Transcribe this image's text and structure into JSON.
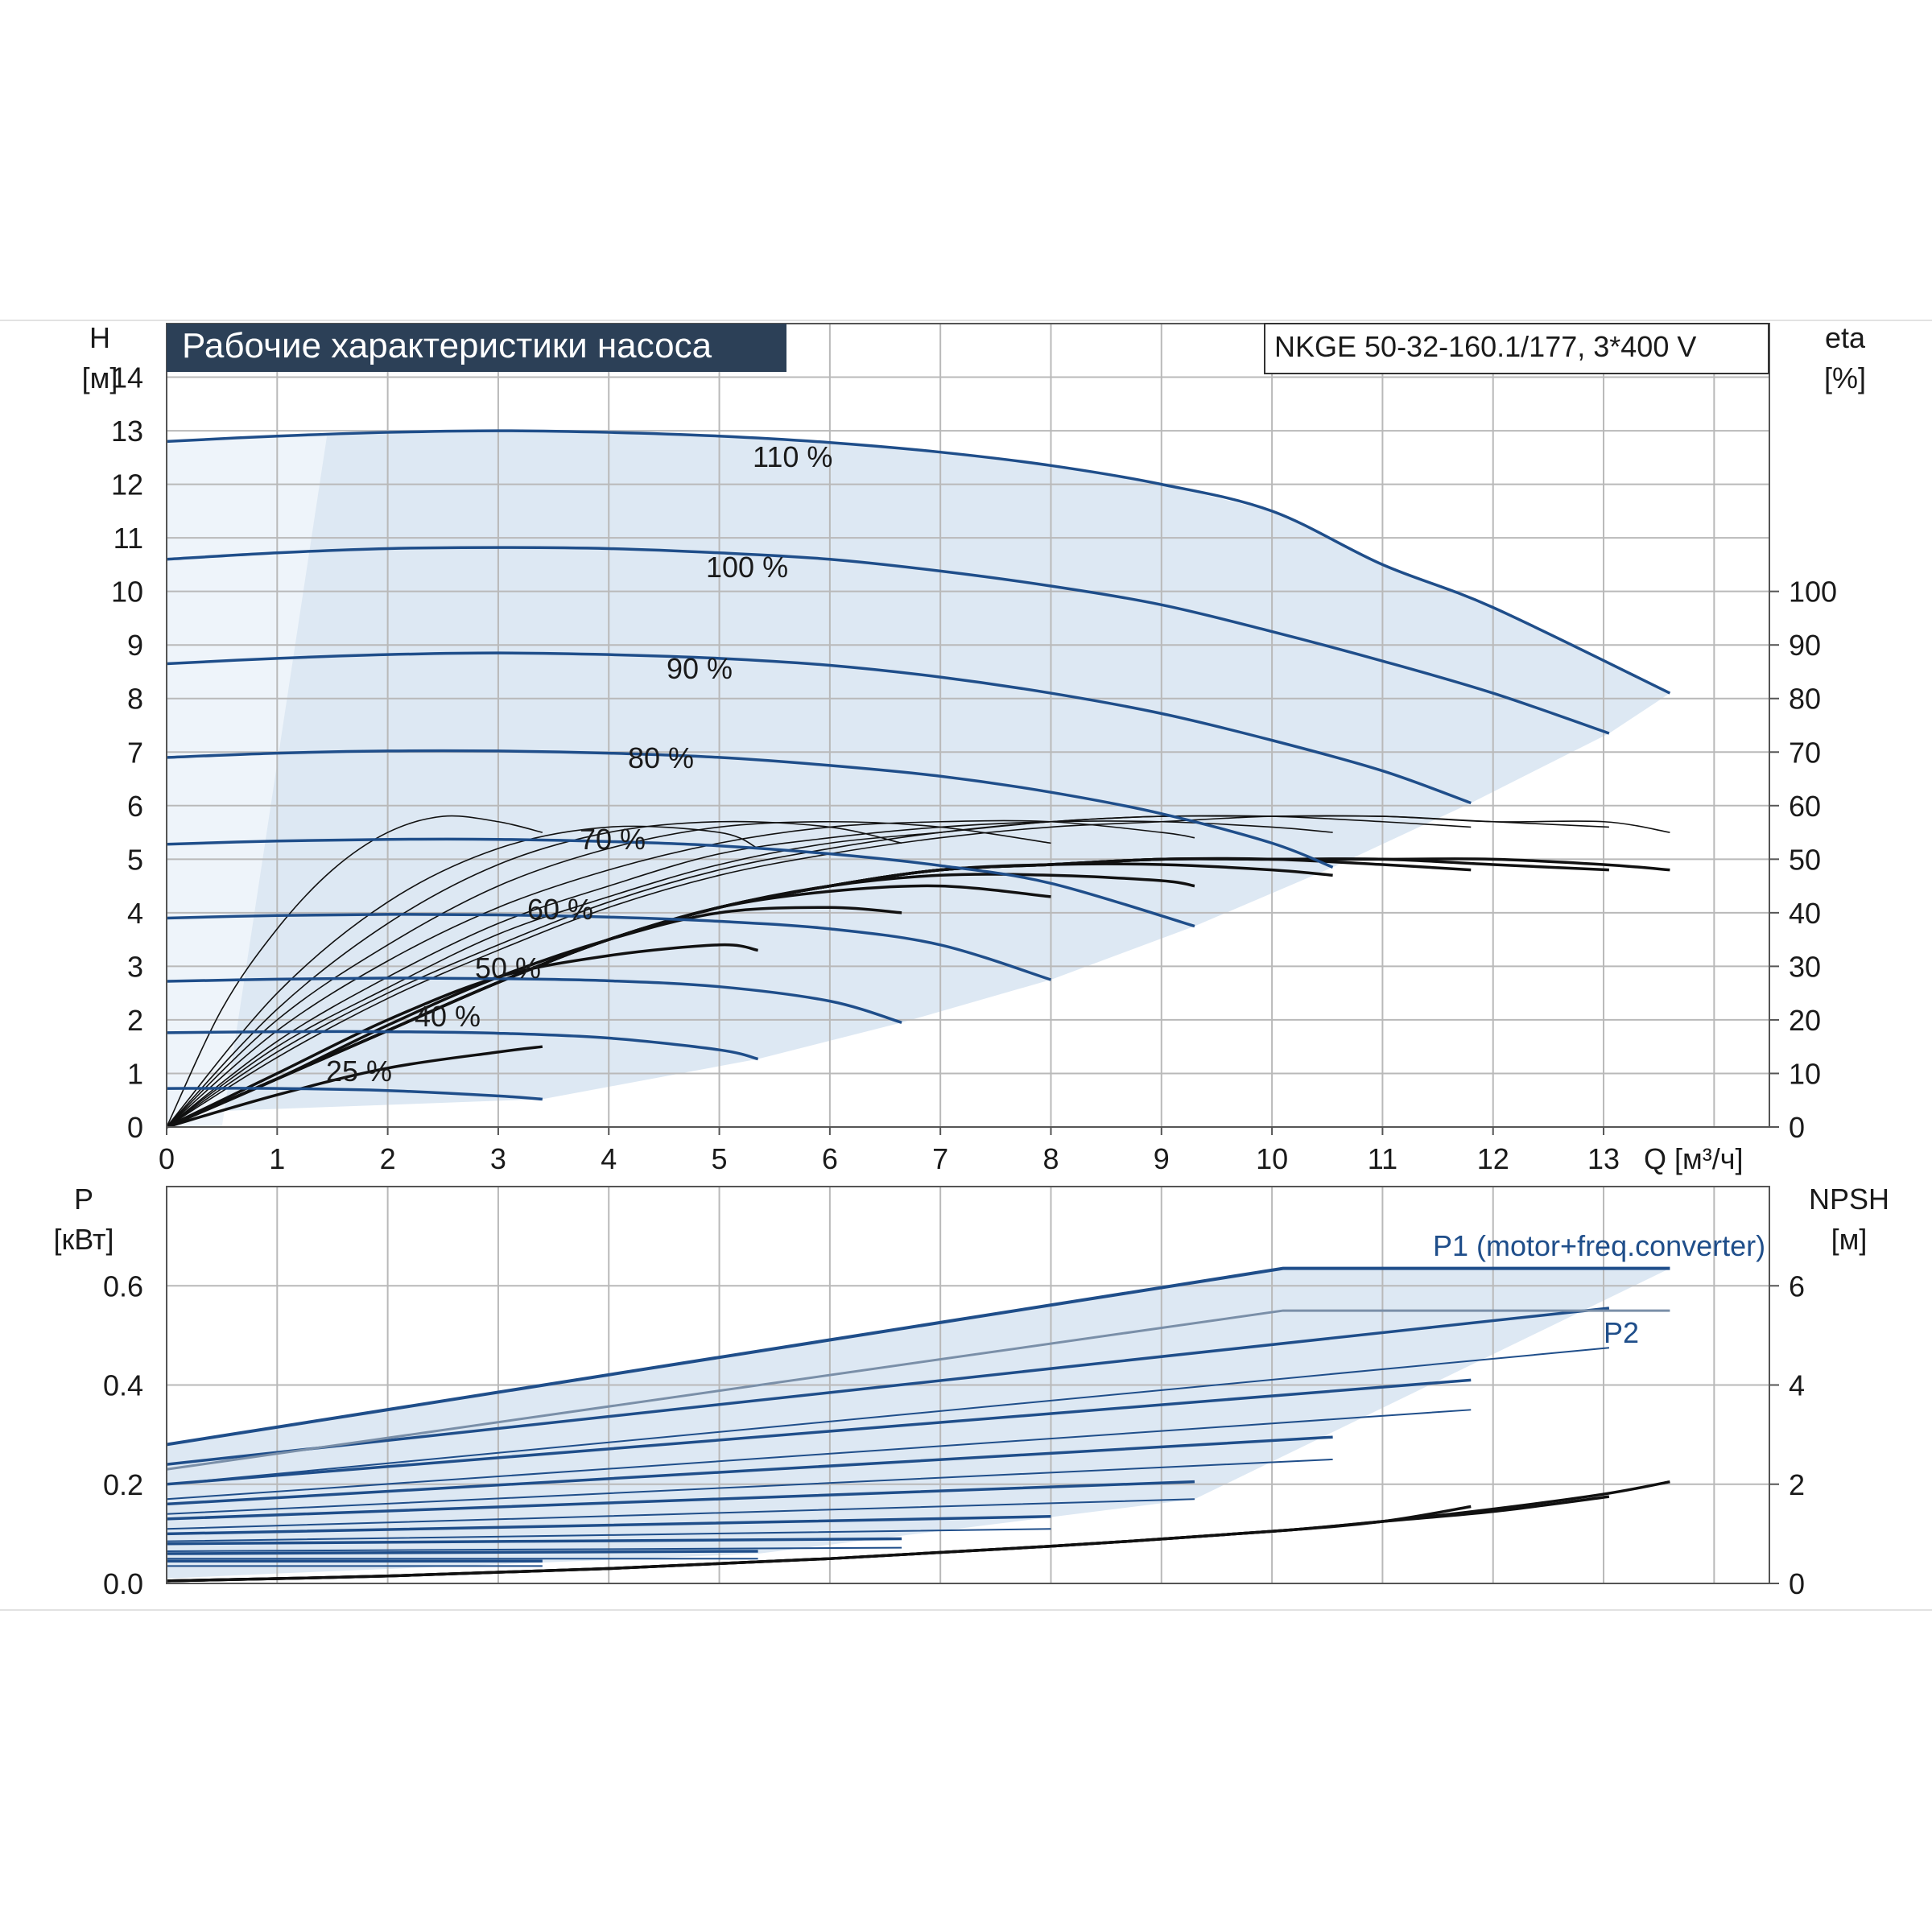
{
  "chart_data": [
    {
      "type": "line",
      "title": "Рабочие характеристики насоса",
      "model_label": "NKGE 50-32-160.1/177, 3*400 V",
      "y_label_left": "H",
      "y_unit_left": "[м]",
      "y_label_right": "eta",
      "y_unit_right": "[%]",
      "x_label": "Q [м³/ч]",
      "xlim": [
        0,
        14.5
      ],
      "ylim": [
        0,
        15
      ],
      "y2lim": [
        0,
        150
      ],
      "x_ticks": [
        "0",
        "1",
        "2",
        "3",
        "4",
        "5",
        "6",
        "7",
        "8",
        "9",
        "10",
        "11",
        "12",
        "13"
      ],
      "y_ticks": [
        "0",
        "1",
        "2",
        "3",
        "4",
        "5",
        "6",
        "7",
        "8",
        "9",
        "10",
        "11",
        "12",
        "13",
        "14"
      ],
      "y2_ticks": [
        "0",
        "10",
        "20",
        "30",
        "40",
        "50",
        "60",
        "70",
        "80",
        "90",
        "100"
      ],
      "grid": true,
      "head_curves": [
        {
          "label": "110 %",
          "x": [
            0,
            1,
            2,
            3,
            4,
            5,
            6,
            7,
            8,
            9,
            10,
            11,
            12,
            13.6
          ],
          "y": [
            12.8,
            12.9,
            12.97,
            13.0,
            12.97,
            12.9,
            12.78,
            12.6,
            12.35,
            12.0,
            11.5,
            10.5,
            9.7,
            8.1
          ]
        },
        {
          "label": "100 %",
          "x": [
            0,
            1,
            2,
            3,
            4,
            5,
            6,
            7,
            8,
            9,
            10,
            11,
            12,
            13.05
          ],
          "y": [
            10.6,
            10.72,
            10.8,
            10.82,
            10.8,
            10.72,
            10.6,
            10.38,
            10.1,
            9.75,
            9.25,
            8.7,
            8.1,
            7.35
          ]
        },
        {
          "label": "90 %",
          "x": [
            0,
            1,
            2,
            3,
            4,
            5,
            6,
            7,
            8,
            9,
            10,
            11,
            11.8
          ],
          "y": [
            8.65,
            8.75,
            8.82,
            8.85,
            8.82,
            8.75,
            8.62,
            8.4,
            8.1,
            7.72,
            7.22,
            6.65,
            6.05
          ]
        },
        {
          "label": "80 %",
          "x": [
            0,
            1,
            2,
            3,
            4,
            5,
            6,
            7,
            8,
            9,
            10,
            10.55
          ],
          "y": [
            6.9,
            6.98,
            7.02,
            7.02,
            6.98,
            6.9,
            6.75,
            6.55,
            6.25,
            5.85,
            5.3,
            4.85
          ]
        },
        {
          "label": "70 %",
          "x": [
            0,
            1,
            2,
            3,
            4,
            5,
            6,
            7,
            8,
            9.3
          ],
          "y": [
            5.28,
            5.34,
            5.37,
            5.37,
            5.33,
            5.25,
            5.1,
            4.88,
            4.55,
            3.75
          ]
        },
        {
          "label": "60 %",
          "x": [
            0,
            1,
            2,
            3,
            4,
            5,
            6,
            7,
            8
          ],
          "y": [
            3.9,
            3.95,
            3.97,
            3.96,
            3.92,
            3.84,
            3.7,
            3.4,
            2.75
          ]
        },
        {
          "label": "50 %",
          "x": [
            0,
            1,
            2,
            3,
            4,
            5,
            6,
            6.65
          ],
          "y": [
            2.72,
            2.76,
            2.78,
            2.77,
            2.73,
            2.62,
            2.35,
            1.95
          ]
        },
        {
          "label": "40 %",
          "x": [
            0,
            1,
            2,
            3,
            4,
            5,
            5.35
          ],
          "y": [
            1.76,
            1.78,
            1.78,
            1.75,
            1.66,
            1.44,
            1.27
          ]
        },
        {
          "label": "25 %",
          "x": [
            0,
            1,
            2,
            3,
            3.4
          ],
          "y": [
            0.72,
            0.72,
            0.68,
            0.58,
            0.52
          ]
        }
      ],
      "eta_curves": [
        {
          "x": [
            0,
            0.5,
            1,
            1.5,
            2,
            2.5,
            3,
            3.4
          ],
          "y": [
            0,
            22,
            37,
            48,
            55,
            58,
            57,
            55
          ]
        },
        {
          "x": [
            0,
            1,
            2,
            3,
            4,
            5,
            5.35
          ],
          "y": [
            0,
            25,
            42,
            52,
            56,
            55,
            52
          ]
        },
        {
          "x": [
            0,
            1,
            2,
            3,
            4,
            5,
            6,
            6.65
          ],
          "y": [
            0,
            22,
            38,
            49,
            55,
            57,
            56,
            53
          ]
        },
        {
          "x": [
            0,
            1,
            2,
            3,
            4,
            5,
            6,
            7,
            8
          ],
          "y": [
            0,
            20,
            34,
            45,
            52,
            56,
            57,
            56,
            53
          ]
        },
        {
          "x": [
            0,
            1,
            2,
            3,
            4,
            5,
            6,
            7,
            8,
            9,
            9.3
          ],
          "y": [
            0,
            18,
            31,
            41,
            48,
            53,
            56,
            57,
            57,
            55,
            54
          ]
        },
        {
          "x": [
            0,
            1,
            2,
            3,
            4,
            5,
            6,
            7,
            8,
            9,
            10,
            10.55
          ],
          "y": [
            0,
            16,
            28,
            38,
            45,
            51,
            54,
            56,
            57,
            57,
            56,
            55
          ]
        },
        {
          "x": [
            0,
            1,
            2,
            3,
            4,
            5,
            6,
            7,
            8,
            9,
            10,
            11,
            11.8
          ],
          "y": [
            0,
            15,
            26,
            36,
            43,
            49,
            53,
            55,
            57,
            58,
            58,
            57,
            56
          ]
        },
        {
          "x": [
            0,
            1,
            2,
            3,
            4,
            5,
            6,
            7,
            8,
            9,
            10,
            11,
            12,
            13.05
          ],
          "y": [
            0,
            14,
            25,
            34,
            42,
            48,
            52,
            55,
            57,
            58,
            58,
            58,
            57,
            56
          ]
        },
        {
          "x": [
            0,
            1,
            2,
            3,
            4,
            5,
            6,
            7,
            8,
            9,
            10,
            11,
            12,
            13,
            13.6
          ],
          "y": [
            0,
            13,
            24,
            33,
            41,
            47,
            51,
            54,
            56,
            57,
            58,
            58,
            57,
            57,
            55
          ]
        }
      ],
      "eta_total_curves": [
        {
          "x": [
            0,
            1,
            2,
            3,
            3.4
          ],
          "y": [
            0,
            6,
            11,
            14,
            15
          ]
        },
        {
          "x": [
            0,
            1,
            2,
            3,
            4,
            5,
            5.35
          ],
          "y": [
            0,
            10,
            20,
            28,
            32,
            34,
            33
          ]
        },
        {
          "x": [
            0,
            1,
            2,
            3,
            4,
            5,
            6,
            6.65
          ],
          "y": [
            0,
            9,
            19,
            28,
            35,
            40,
            41,
            40
          ]
        },
        {
          "x": [
            0,
            1,
            2,
            3,
            4,
            5,
            6,
            7,
            8
          ],
          "y": [
            0,
            9,
            18,
            27,
            35,
            41,
            44,
            45,
            43
          ]
        },
        {
          "x": [
            0,
            1,
            2,
            3,
            4,
            5,
            6,
            7,
            8,
            9,
            9.3
          ],
          "y": [
            0,
            9,
            18,
            27,
            35,
            41,
            45,
            47,
            47,
            46,
            45
          ]
        },
        {
          "x": [
            0,
            1,
            2,
            3,
            4,
            5,
            6,
            7,
            8,
            9,
            10,
            10.55
          ],
          "y": [
            0,
            9,
            18,
            27,
            35,
            41,
            45,
            48,
            49,
            49,
            48,
            47
          ]
        },
        {
          "x": [
            0,
            1,
            2,
            3,
            4,
            5,
            6,
            7,
            8,
            9,
            10,
            11,
            11.8
          ],
          "y": [
            0,
            9,
            18,
            27,
            35,
            41,
            45,
            48,
            49,
            50,
            50,
            49,
            48
          ]
        },
        {
          "x": [
            0,
            1,
            2,
            3,
            4,
            5,
            6,
            7,
            8,
            9,
            10,
            11,
            12,
            13.05
          ],
          "y": [
            0,
            9,
            18,
            27,
            35,
            41,
            45,
            48,
            49,
            50,
            50,
            50,
            49,
            48
          ]
        },
        {
          "x": [
            0,
            1,
            2,
            3,
            4,
            5,
            6,
            7,
            8,
            9,
            10,
            11,
            12,
            13,
            13.6
          ],
          "y": [
            0,
            9,
            18,
            27,
            35,
            41,
            45,
            48,
            49,
            50,
            50,
            50,
            50,
            49,
            48
          ]
        }
      ]
    },
    {
      "type": "line",
      "y_label_left": "P",
      "y_unit_left": "[кВт]",
      "y_label_right": "NPSH",
      "y_unit_right": "[м]",
      "xlim": [
        0,
        14.5
      ],
      "ylim": [
        0,
        0.8
      ],
      "y2lim": [
        0,
        8
      ],
      "y_ticks": [
        "0.0",
        "0.2",
        "0.4",
        "0.6"
      ],
      "y2_ticks": [
        "0",
        "2",
        "4",
        "6"
      ],
      "grid": true,
      "series": [
        {
          "name": "P1 (motor+freq.converter)",
          "x": [
            0,
            10.1,
            13.6
          ],
          "y": [
            0.28,
            0.635,
            0.635
          ]
        },
        {
          "name": "P2",
          "x": [
            0,
            10.1,
            13.6
          ],
          "y": [
            0.23,
            0.55,
            0.55
          ]
        }
      ],
      "p1_curves": [
        {
          "x": [
            0,
            13.05
          ],
          "y": [
            0.24,
            0.555
          ]
        },
        {
          "x": [
            0,
            11.8
          ],
          "y": [
            0.2,
            0.41
          ]
        },
        {
          "x": [
            0,
            10.55
          ],
          "y": [
            0.16,
            0.295
          ]
        },
        {
          "x": [
            0,
            9.3
          ],
          "y": [
            0.13,
            0.205
          ]
        },
        {
          "x": [
            0,
            8
          ],
          "y": [
            0.1,
            0.135
          ]
        },
        {
          "x": [
            0,
            6.65
          ],
          "y": [
            0.08,
            0.09
          ]
        },
        {
          "x": [
            0,
            5.35
          ],
          "y": [
            0.06,
            0.065
          ]
        },
        {
          "x": [
            0,
            3.4
          ],
          "y": [
            0.045,
            0.045
          ]
        }
      ],
      "p2_curves": [
        {
          "x": [
            0,
            13.05
          ],
          "y": [
            0.2,
            0.475
          ]
        },
        {
          "x": [
            0,
            11.8
          ],
          "y": [
            0.17,
            0.35
          ]
        },
        {
          "x": [
            0,
            10.55
          ],
          "y": [
            0.14,
            0.25
          ]
        },
        {
          "x": [
            0,
            9.3
          ],
          "y": [
            0.11,
            0.17
          ]
        },
        {
          "x": [
            0,
            8
          ],
          "y": [
            0.085,
            0.11
          ]
        },
        {
          "x": [
            0,
            6.65
          ],
          "y": [
            0.065,
            0.072
          ]
        },
        {
          "x": [
            0,
            5.35
          ],
          "y": [
            0.05,
            0.05
          ]
        },
        {
          "x": [
            0,
            3.4
          ],
          "y": [
            0.035,
            0.035
          ]
        }
      ],
      "npsh_curves": [
        {
          "x": [
            0,
            2,
            4,
            6,
            8,
            10,
            11,
            12,
            13,
            13.6
          ],
          "y": [
            0.05,
            0.15,
            0.3,
            0.5,
            0.75,
            1.05,
            1.25,
            1.5,
            1.8,
            2.05
          ]
        },
        {
          "x": [
            0,
            2,
            4,
            6,
            8,
            10,
            11,
            12,
            13.05
          ],
          "y": [
            0.05,
            0.15,
            0.3,
            0.5,
            0.75,
            1.05,
            1.25,
            1.45,
            1.75
          ]
        },
        {
          "x": [
            0,
            2,
            4,
            6,
            8,
            10,
            11,
            11.8
          ],
          "y": [
            0.05,
            0.15,
            0.3,
            0.5,
            0.75,
            1.05,
            1.25,
            1.55
          ]
        }
      ]
    }
  ]
}
